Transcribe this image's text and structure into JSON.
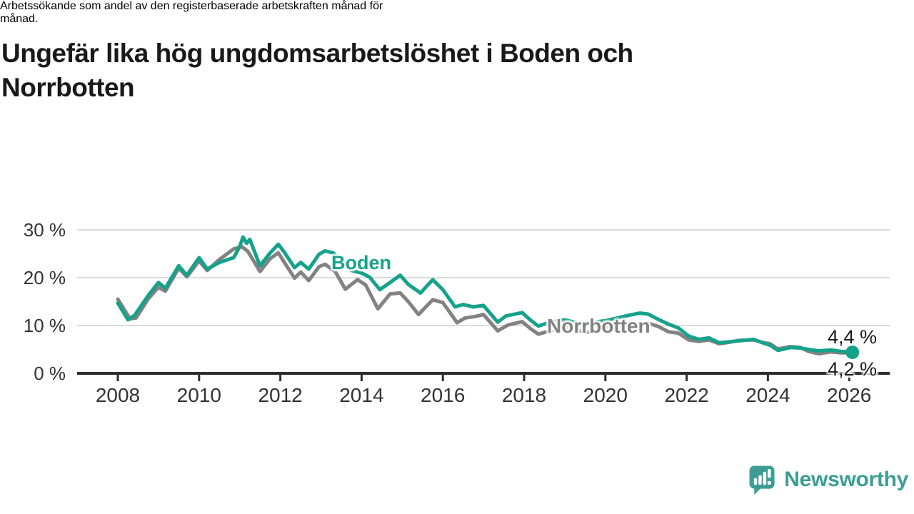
{
  "header": {
    "title_lines": [
      "Ungefär lika hög ungdomsarbetslöshet i Boden och",
      "Norrbotten"
    ],
    "subtitle_lines": [
      "Arbetssökande som andel av den registerbaserade arbetskraften månad för",
      "månad."
    ]
  },
  "chart_data": {
    "type": "line",
    "title": "Ungefär lika hög ungdomsarbetslöshet i Boden och Norrbotten",
    "subtitle": "Arbetssökande som andel av den registerbaserade arbetskraften månad för månad.",
    "unit": "%",
    "x_axis": {
      "label": "",
      "ticks": [
        2008,
        2010,
        2012,
        2014,
        2016,
        2018,
        2020,
        2022,
        2024,
        2026
      ],
      "range": [
        2007.9,
        2026.4
      ],
      "time_resolution": "monthly"
    },
    "y_axis": {
      "label": "",
      "ticks": [
        {
          "value": 0,
          "label": "0 %"
        },
        {
          "value": 10,
          "label": "10 %"
        },
        {
          "value": 20,
          "label": "20 %"
        },
        {
          "value": 30,
          "label": "30 %"
        }
      ],
      "range": [
        0,
        31
      ],
      "gridlines": true
    },
    "legend_position": "inline-labels",
    "series": [
      {
        "name": "Norrbotten",
        "label_text": "Norrbotten",
        "end_label": "4,2 %",
        "end_value": 4.2,
        "color": "#828282",
        "points": [
          [
            2008.0,
            15.5
          ],
          [
            2008.3,
            11.4
          ],
          [
            2008.45,
            11.6
          ],
          [
            2008.75,
            15.6
          ],
          [
            2009.0,
            18.0
          ],
          [
            2009.17,
            17.2
          ],
          [
            2009.5,
            22.0
          ],
          [
            2009.7,
            20.2
          ],
          [
            2010.0,
            23.5
          ],
          [
            2010.2,
            21.5
          ],
          [
            2010.5,
            23.8
          ],
          [
            2010.85,
            26.0
          ],
          [
            2011.05,
            26.5
          ],
          [
            2011.2,
            25.5
          ],
          [
            2011.5,
            21.3
          ],
          [
            2011.75,
            24.0
          ],
          [
            2011.95,
            25.2
          ],
          [
            2012.1,
            23.2
          ],
          [
            2012.35,
            19.9
          ],
          [
            2012.5,
            21.2
          ],
          [
            2012.7,
            19.4
          ],
          [
            2012.95,
            22.3
          ],
          [
            2013.1,
            22.8
          ],
          [
            2013.35,
            21.3
          ],
          [
            2013.6,
            17.6
          ],
          [
            2013.9,
            19.6
          ],
          [
            2014.1,
            18.5
          ],
          [
            2014.4,
            13.5
          ],
          [
            2014.7,
            16.6
          ],
          [
            2014.95,
            16.8
          ],
          [
            2015.15,
            15.0
          ],
          [
            2015.4,
            12.3
          ],
          [
            2015.75,
            15.4
          ],
          [
            2016.0,
            14.8
          ],
          [
            2016.35,
            10.6
          ],
          [
            2016.55,
            11.6
          ],
          [
            2016.8,
            11.9
          ],
          [
            2017.0,
            12.3
          ],
          [
            2017.35,
            8.9
          ],
          [
            2017.6,
            10.1
          ],
          [
            2017.95,
            10.8
          ],
          [
            2018.15,
            9.4
          ],
          [
            2018.35,
            8.2
          ],
          [
            2018.6,
            8.8
          ],
          [
            2018.85,
            9.3
          ],
          [
            2019.0,
            9.5
          ],
          [
            2019.3,
            9.0
          ],
          [
            2019.55,
            8.6
          ],
          [
            2019.8,
            9.2
          ],
          [
            2020.0,
            9.5
          ],
          [
            2020.3,
            10.2
          ],
          [
            2020.6,
            10.5
          ],
          [
            2020.85,
            10.3
          ],
          [
            2021.05,
            10.5
          ],
          [
            2021.3,
            9.8
          ],
          [
            2021.55,
            8.7
          ],
          [
            2021.8,
            8.4
          ],
          [
            2022.05,
            7.0
          ],
          [
            2022.3,
            6.7
          ],
          [
            2022.55,
            7.0
          ],
          [
            2022.8,
            6.2
          ],
          [
            2023.05,
            6.5
          ],
          [
            2023.3,
            6.9
          ],
          [
            2023.65,
            7.0
          ],
          [
            2023.9,
            6.4
          ],
          [
            2024.05,
            6.2
          ],
          [
            2024.25,
            5.1
          ],
          [
            2024.55,
            5.6
          ],
          [
            2024.8,
            5.4
          ],
          [
            2025.0,
            4.6
          ],
          [
            2025.25,
            4.1
          ],
          [
            2025.55,
            4.5
          ],
          [
            2025.8,
            4.3
          ],
          [
            2026.0,
            4.3
          ],
          [
            2026.08,
            4.2
          ]
        ]
      },
      {
        "name": "Boden",
        "label_text": "Boden",
        "end_label": "4,4 %",
        "end_value": 4.4,
        "color": "#15A28B",
        "points": [
          [
            2008.0,
            14.7
          ],
          [
            2008.25,
            11.2
          ],
          [
            2008.42,
            12.2
          ],
          [
            2008.75,
            16.3
          ],
          [
            2009.0,
            19.0
          ],
          [
            2009.17,
            17.8
          ],
          [
            2009.5,
            22.5
          ],
          [
            2009.7,
            20.5
          ],
          [
            2010.0,
            24.2
          ],
          [
            2010.2,
            21.8
          ],
          [
            2010.5,
            23.2
          ],
          [
            2010.85,
            24.2
          ],
          [
            2011.0,
            26.5
          ],
          [
            2011.08,
            28.5
          ],
          [
            2011.17,
            27.2
          ],
          [
            2011.25,
            28.0
          ],
          [
            2011.5,
            22.5
          ],
          [
            2011.75,
            25.2
          ],
          [
            2011.95,
            27.0
          ],
          [
            2012.1,
            25.3
          ],
          [
            2012.35,
            22.1
          ],
          [
            2012.5,
            23.2
          ],
          [
            2012.7,
            21.8
          ],
          [
            2012.95,
            24.9
          ],
          [
            2013.1,
            25.6
          ],
          [
            2013.3,
            25.2
          ],
          [
            2013.5,
            23.5
          ],
          [
            2013.75,
            21.5
          ],
          [
            2014.0,
            21.0
          ],
          [
            2014.2,
            20.1
          ],
          [
            2014.45,
            17.5
          ],
          [
            2014.7,
            19.0
          ],
          [
            2014.95,
            20.5
          ],
          [
            2015.15,
            18.6
          ],
          [
            2015.45,
            16.8
          ],
          [
            2015.75,
            19.6
          ],
          [
            2016.0,
            17.5
          ],
          [
            2016.3,
            13.9
          ],
          [
            2016.5,
            14.4
          ],
          [
            2016.75,
            13.9
          ],
          [
            2017.0,
            14.2
          ],
          [
            2017.35,
            10.7
          ],
          [
            2017.55,
            12.0
          ],
          [
            2017.95,
            12.7
          ],
          [
            2018.15,
            11.2
          ],
          [
            2018.35,
            9.9
          ],
          [
            2018.6,
            10.6
          ],
          [
            2018.85,
            11.0
          ],
          [
            2019.0,
            11.2
          ],
          [
            2019.3,
            10.6
          ],
          [
            2019.55,
            10.2
          ],
          [
            2019.8,
            10.8
          ],
          [
            2020.0,
            11.0
          ],
          [
            2020.3,
            11.6
          ],
          [
            2020.6,
            12.2
          ],
          [
            2020.85,
            12.6
          ],
          [
            2021.05,
            12.4
          ],
          [
            2021.3,
            11.3
          ],
          [
            2021.55,
            10.3
          ],
          [
            2021.8,
            9.5
          ],
          [
            2022.05,
            7.8
          ],
          [
            2022.3,
            7.1
          ],
          [
            2022.55,
            7.4
          ],
          [
            2022.8,
            6.4
          ],
          [
            2023.05,
            6.6
          ],
          [
            2023.3,
            6.8
          ],
          [
            2023.65,
            7.1
          ],
          [
            2023.9,
            6.3
          ],
          [
            2024.05,
            5.9
          ],
          [
            2024.25,
            4.8
          ],
          [
            2024.55,
            5.4
          ],
          [
            2024.8,
            5.3
          ],
          [
            2025.0,
            5.0
          ],
          [
            2025.25,
            4.7
          ],
          [
            2025.55,
            4.9
          ],
          [
            2025.8,
            4.6
          ],
          [
            2026.0,
            4.5
          ],
          [
            2026.08,
            4.4
          ]
        ]
      }
    ],
    "colors": {
      "gridline": "#DBDBDB",
      "axis": "#2E2E2E",
      "tick_label": "#333333",
      "end_label_text": "#1a1a1a"
    }
  },
  "branding": {
    "logo_text": "Newsworthy",
    "logo_color": "#3C9D95",
    "logo_icon": "newsworthy-speech-bubble-bars-icon"
  }
}
